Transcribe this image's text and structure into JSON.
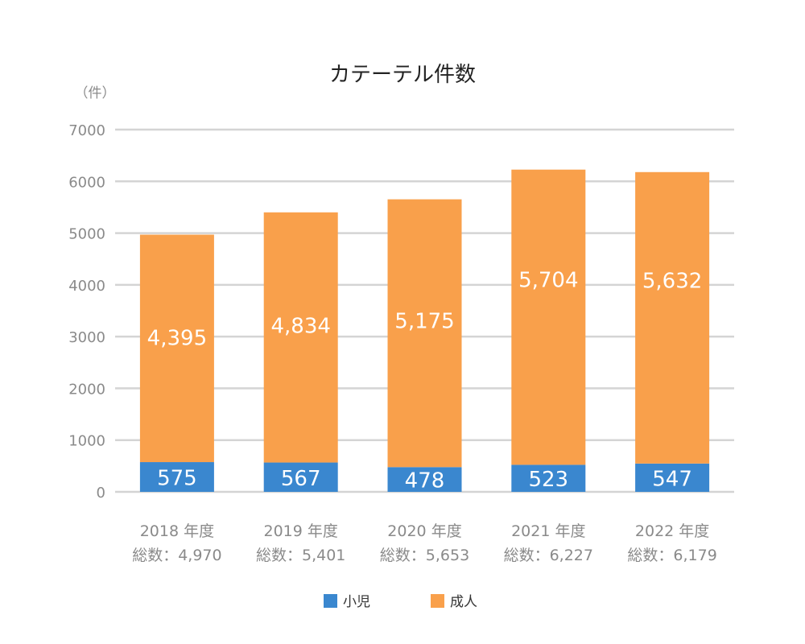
{
  "chart_data": {
    "type": "bar",
    "stacked": true,
    "title": "カテーテル件数",
    "ylabel": "（件）",
    "ylim": [
      0,
      7000
    ],
    "yticks": [
      0,
      1000,
      2000,
      3000,
      4000,
      5000,
      6000,
      7000
    ],
    "grid": true,
    "legend_position": "bottom",
    "categories": [
      "2018 年度",
      "2019 年度",
      "2020 年度",
      "2021 年度",
      "2022 年度"
    ],
    "totals": [
      "総数：4,970",
      "総数：5,401",
      "総数：5,653",
      "総数：6,227",
      "総数：6,179"
    ],
    "series": [
      {
        "name": "小児",
        "color": "#3a87cf",
        "values": [
          575,
          567,
          478,
          523,
          547
        ],
        "labels": [
          "575",
          "567",
          "478",
          "523",
          "547"
        ]
      },
      {
        "name": "成人",
        "color": "#f9a04b",
        "values": [
          4395,
          4834,
          5175,
          5704,
          5632
        ],
        "labels": [
          "4,395",
          "4,834",
          "5,175",
          "5,704",
          "5,632"
        ]
      }
    ]
  }
}
